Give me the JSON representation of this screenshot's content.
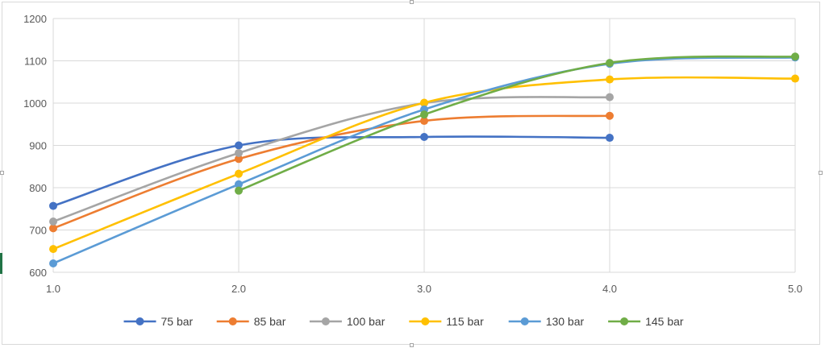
{
  "chart_data": {
    "type": "line",
    "title": "",
    "xlabel": "",
    "ylabel": "",
    "xlim": [
      1.0,
      5.0
    ],
    "ylim": [
      600,
      1200
    ],
    "grid": true,
    "smooth": true,
    "legend_position": "bottom",
    "x_ticks": [
      "1.0",
      "2.0",
      "3.0",
      "4.0",
      "5.0"
    ],
    "y_ticks": [
      "600",
      "700",
      "800",
      "900",
      "1000",
      "1100",
      "1200"
    ],
    "series": [
      {
        "name": "75 bar",
        "color": "#4472C4",
        "x": [
          1,
          2,
          3,
          4
        ],
        "y": [
          757,
          900,
          920,
          918
        ]
      },
      {
        "name": "85 bar",
        "color": "#ED7D31",
        "x": [
          1,
          2,
          3,
          4
        ],
        "y": [
          704,
          868,
          958,
          970
        ]
      },
      {
        "name": "100 bar",
        "color": "#A5A5A5",
        "x": [
          1,
          2,
          3,
          4
        ],
        "y": [
          720,
          882,
          1000,
          1014
        ]
      },
      {
        "name": "115 bar",
        "color": "#FFC000",
        "x": [
          1,
          2,
          3,
          4,
          5
        ],
        "y": [
          655,
          833,
          1001,
          1056,
          1058
        ]
      },
      {
        "name": "130 bar",
        "color": "#5B9BD5",
        "x": [
          1,
          2,
          3,
          4,
          5
        ],
        "y": [
          621,
          808,
          985,
          1093,
          1108
        ]
      },
      {
        "name": "145 bar",
        "color": "#70AD47",
        "x": [
          2,
          3,
          4,
          5
        ],
        "y": [
          793,
          973,
          1095,
          1110
        ]
      }
    ]
  }
}
